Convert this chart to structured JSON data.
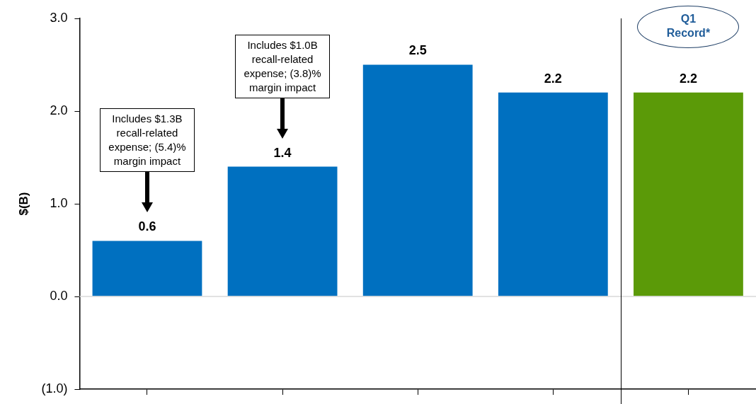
{
  "chart_data": {
    "type": "bar",
    "ylabel": "$(B)",
    "categories": [
      null,
      null,
      null,
      null,
      null
    ],
    "values": [
      0.6,
      1.4,
      2.5,
      2.2,
      2.2
    ],
    "colors": [
      "#0070c0",
      "#0070c0",
      "#0070c0",
      "#0070c0",
      "#5b9a08"
    ],
    "ylim": [
      -1,
      3
    ],
    "yticks": [
      {
        "value": 3,
        "label": "3.0"
      },
      {
        "value": 2,
        "label": "2.0"
      },
      {
        "value": 1,
        "label": "1.0"
      },
      {
        "value": 0,
        "label": "0.0"
      },
      {
        "value": -1,
        "label": "(1.0)"
      }
    ],
    "grid": false,
    "legend": false,
    "data_labels": true,
    "tick_labels": "y",
    "ref_lines": [
      {
        "axis": "y",
        "value": 0,
        "color": "#d9d9d9"
      }
    ],
    "annotations": [
      "Includes $1.3B recall-related expense; (5.4)% margin impact",
      "Includes $1.0B recall-related expense; (3.8)% margin impact",
      "Q1 Record*"
    ]
  }
}
